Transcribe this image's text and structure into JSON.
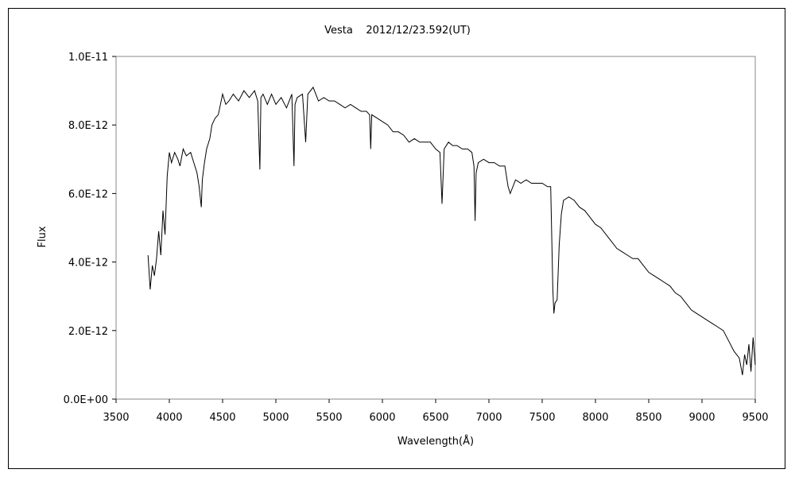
{
  "chart_data": {
    "type": "line",
    "title": "Vesta    2012/12/23.592(UT)",
    "xlabel": "Wavelength(Å)",
    "ylabel": "Flux",
    "xlim": [
      3500,
      9500
    ],
    "ylim": [
      0,
      1e-11
    ],
    "x_ticks": [
      3500,
      4000,
      4500,
      5000,
      5500,
      6000,
      6500,
      7000,
      7500,
      8000,
      8500,
      9000,
      9500
    ],
    "x_tick_labels": [
      "3500",
      "4000",
      "4500",
      "5000",
      "5500",
      "6000",
      "6500",
      "7000",
      "7500",
      "8000",
      "8500",
      "9000",
      "9500"
    ],
    "y_ticks": [
      0,
      2e-12,
      4e-12,
      6e-12,
      8e-12,
      1e-11
    ],
    "y_tick_labels": [
      "0.0E+00",
      "2.0E-12",
      "4.0E-12",
      "6.0E-12",
      "8.0E-12",
      "1.0E-11"
    ],
    "grid": false,
    "legend": "none",
    "line_color": "#000000",
    "series": [
      {
        "x": [
          3800,
          3820,
          3840,
          3860,
          3880,
          3900,
          3920,
          3940,
          3960,
          3980,
          4000,
          4020,
          4050,
          4080,
          4100,
          4130,
          4160,
          4200,
          4230,
          4260,
          4280,
          4300,
          4310,
          4330,
          4350,
          4380,
          4400,
          4430,
          4460,
          4480,
          4500,
          4530,
          4560,
          4600,
          4650,
          4700,
          4750,
          4800,
          4830,
          4850,
          4860,
          4880,
          4920,
          4960,
          5000,
          5050,
          5100,
          5150,
          5170,
          5180,
          5200,
          5250,
          5280,
          5300,
          5350,
          5400,
          5450,
          5500,
          5550,
          5600,
          5650,
          5700,
          5750,
          5800,
          5850,
          5880,
          5890,
          5900,
          5950,
          6000,
          6050,
          6100,
          6150,
          6200,
          6250,
          6300,
          6350,
          6400,
          6450,
          6500,
          6540,
          6560,
          6580,
          6620,
          6660,
          6700,
          6750,
          6800,
          6840,
          6860,
          6870,
          6880,
          6900,
          6950,
          7000,
          7050,
          7100,
          7150,
          7180,
          7200,
          7250,
          7300,
          7350,
          7400,
          7450,
          7500,
          7550,
          7580,
          7600,
          7610,
          7620,
          7640,
          7660,
          7680,
          7700,
          7750,
          7800,
          7850,
          7900,
          7950,
          8000,
          8050,
          8100,
          8150,
          8200,
          8250,
          8300,
          8350,
          8400,
          8450,
          8500,
          8550,
          8600,
          8650,
          8700,
          8750,
          8800,
          8850,
          8900,
          8950,
          9000,
          9050,
          9100,
          9150,
          9200,
          9250,
          9300,
          9350,
          9380,
          9400,
          9420,
          9440,
          9460,
          9480,
          9500
        ],
        "y": [
          4.2e-12,
          3.2e-12,
          3.9e-12,
          3.6e-12,
          4.1e-12,
          4.9e-12,
          4.2e-12,
          5.5e-12,
          4.8e-12,
          6.5e-12,
          7.2e-12,
          6.9e-12,
          7.2e-12,
          7e-12,
          6.8e-12,
          7.3e-12,
          7.1e-12,
          7.2e-12,
          6.9e-12,
          6.6e-12,
          6.2e-12,
          5.6e-12,
          6.4e-12,
          6.9e-12,
          7.3e-12,
          7.6e-12,
          8e-12,
          8.2e-12,
          8.3e-12,
          8.6e-12,
          8.9e-12,
          8.6e-12,
          8.7e-12,
          8.9e-12,
          8.7e-12,
          9e-12,
          8.8e-12,
          9e-12,
          8.7e-12,
          6.7e-12,
          8.8e-12,
          8.9e-12,
          8.6e-12,
          8.9e-12,
          8.6e-12,
          8.8e-12,
          8.5e-12,
          8.9e-12,
          6.8e-12,
          8.6e-12,
          8.8e-12,
          8.9e-12,
          7.5e-12,
          8.9e-12,
          9.1e-12,
          8.7e-12,
          8.8e-12,
          8.7e-12,
          8.7e-12,
          8.6e-12,
          8.5e-12,
          8.6e-12,
          8.5e-12,
          8.4e-12,
          8.4e-12,
          8.3e-12,
          7.3e-12,
          8.3e-12,
          8.2e-12,
          8.1e-12,
          8e-12,
          7.8e-12,
          7.8e-12,
          7.7e-12,
          7.5e-12,
          7.6e-12,
          7.5e-12,
          7.5e-12,
          7.5e-12,
          7.3e-12,
          7.2e-12,
          5.7e-12,
          7.3e-12,
          7.5e-12,
          7.4e-12,
          7.4e-12,
          7.3e-12,
          7.3e-12,
          7.2e-12,
          6.8e-12,
          5.2e-12,
          6.6e-12,
          6.9e-12,
          7e-12,
          6.9e-12,
          6.9e-12,
          6.8e-12,
          6.8e-12,
          6.2e-12,
          6e-12,
          6.4e-12,
          6.3e-12,
          6.4e-12,
          6.3e-12,
          6.3e-12,
          6.3e-12,
          6.2e-12,
          6.2e-12,
          3.2e-12,
          2.5e-12,
          2.8e-12,
          2.9e-12,
          4.5e-12,
          5.4e-12,
          5.8e-12,
          5.9e-12,
          5.8e-12,
          5.6e-12,
          5.5e-12,
          5.3e-12,
          5.1e-12,
          5e-12,
          4.8e-12,
          4.6e-12,
          4.4e-12,
          4.3e-12,
          4.2e-12,
          4.1e-12,
          4.1e-12,
          3.9e-12,
          3.7e-12,
          3.6e-12,
          3.5e-12,
          3.4e-12,
          3.3e-12,
          3.1e-12,
          3e-12,
          2.8e-12,
          2.6e-12,
          2.5e-12,
          2.4e-12,
          2.3e-12,
          2.2e-12,
          2.1e-12,
          2e-12,
          1.7e-12,
          1.4e-12,
          1.2e-12,
          7e-13,
          1.3e-12,
          1e-12,
          1.6e-12,
          8e-13,
          1.8e-12,
          1e-12
        ]
      }
    ]
  }
}
